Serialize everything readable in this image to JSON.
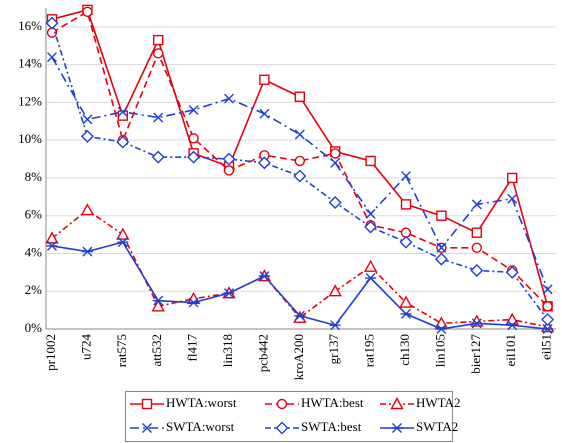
{
  "chart_data": {
    "type": "line",
    "categories": [
      "pr1002",
      "u724",
      "rat575",
      "att532",
      "fl417",
      "lin318",
      "pcb442",
      "kroA200",
      "gr137",
      "rat195",
      "ch130",
      "lin105",
      "bier127",
      "eil101",
      "eil51"
    ],
    "ylim": [
      0,
      17
    ],
    "yticks": [
      {
        "value": 0,
        "label": "0%"
      },
      {
        "value": 2,
        "label": "2%"
      },
      {
        "value": 4,
        "label": "4%"
      },
      {
        "value": 6,
        "label": "6%"
      },
      {
        "value": 8,
        "label": "8%"
      },
      {
        "value": 10,
        "label": "10%"
      },
      {
        "value": 12,
        "label": "12%"
      },
      {
        "value": 14,
        "label": "14%"
      },
      {
        "value": 16,
        "label": "16%"
      }
    ],
    "grid": true,
    "legend": "bottom",
    "series": [
      {
        "name": "HWTA:worst",
        "color": "#e8000b",
        "marker": "square",
        "dash": "solid",
        "values": [
          16.4,
          16.9,
          11.3,
          15.3,
          9.3,
          8.6,
          13.2,
          12.3,
          9.4,
          8.9,
          6.6,
          6.0,
          5.1,
          8.0,
          1.2
        ]
      },
      {
        "name": "HWTA:best",
        "color": "#e8000b",
        "marker": "circle",
        "dash": "dashed",
        "values": [
          15.7,
          16.8,
          10.0,
          14.6,
          10.1,
          8.4,
          9.2,
          8.9,
          9.3,
          5.5,
          5.1,
          4.3,
          4.3,
          3.1,
          1.2
        ]
      },
      {
        "name": "HWTA2",
        "color": "#e8000b",
        "marker": "triangle",
        "dash": "dashdot",
        "values": [
          4.8,
          6.3,
          5.0,
          1.2,
          1.6,
          1.9,
          2.8,
          0.6,
          2.0,
          3.3,
          1.4,
          0.3,
          0.4,
          0.5,
          0.1
        ]
      },
      {
        "name": "SWTA:worst",
        "color": "#1f3fd6",
        "marker": "x",
        "dash": "longdashdot",
        "values": [
          14.4,
          11.1,
          11.5,
          11.2,
          11.6,
          12.2,
          11.4,
          10.3,
          8.8,
          6.1,
          8.1,
          4.3,
          6.6,
          6.9,
          2.1
        ]
      },
      {
        "name": "SWTA:best",
        "color": "#1f3fd6",
        "marker": "diamond",
        "dash": "dashdot",
        "values": [
          16.2,
          10.2,
          9.9,
          9.1,
          9.1,
          9.0,
          8.8,
          8.1,
          6.7,
          5.4,
          4.6,
          3.7,
          3.1,
          3.0,
          0.5
        ]
      },
      {
        "name": "SWTA2",
        "color": "#1f3fd6",
        "marker": "star",
        "dash": "solid",
        "values": [
          4.4,
          4.1,
          4.6,
          1.5,
          1.4,
          1.9,
          2.8,
          0.7,
          0.2,
          2.7,
          0.8,
          0.0,
          0.3,
          0.2,
          0.0
        ]
      }
    ]
  }
}
